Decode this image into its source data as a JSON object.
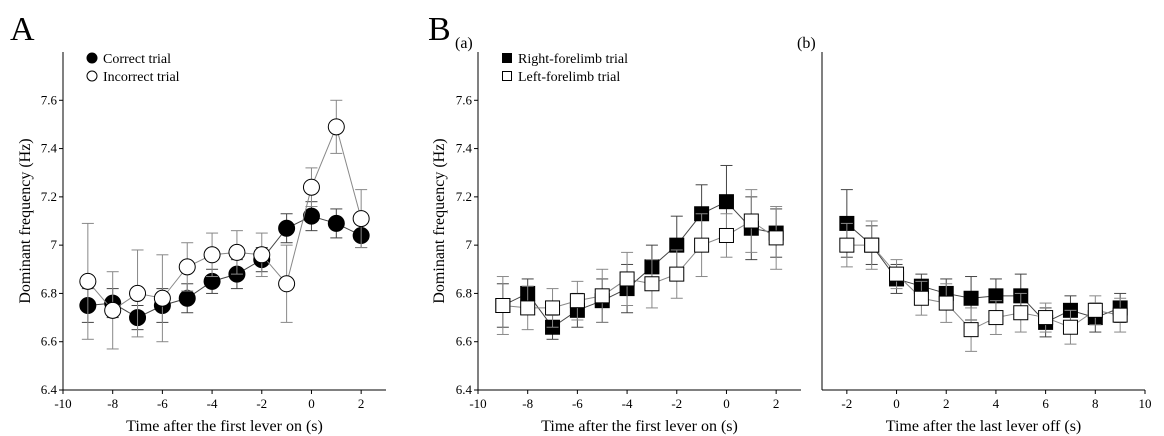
{
  "chart_data": [
    {
      "type": "line",
      "panel_label": "A",
      "xlabel": "Time after the first lever on (s)",
      "ylabel": "Dominant frequency (Hz)",
      "xlim": [
        -10,
        3
      ],
      "ylim": [
        6.4,
        7.8
      ],
      "xticks": [
        -10,
        -8,
        -6,
        -4,
        -2,
        0,
        2
      ],
      "yticks": [
        6.4,
        6.6,
        6.8,
        7,
        7.2,
        7.4,
        7.6
      ],
      "xtick_labels": [
        "-10",
        "-8",
        "-6",
        "-4",
        "-2",
        "0",
        "2"
      ],
      "ytick_labels": [
        "6.4",
        "6.6",
        "6.8",
        "7",
        "7.2",
        "7.4",
        "7.6"
      ],
      "legend_position": "top-left",
      "x": [
        -9,
        -8,
        -7,
        -6,
        -5,
        -4,
        -3,
        -2,
        -1,
        0,
        1,
        2
      ],
      "series": [
        {
          "name": "Correct trial",
          "marker": "filled-circle",
          "values": [
            6.75,
            6.76,
            6.7,
            6.75,
            6.78,
            6.85,
            6.88,
            6.94,
            7.07,
            7.12,
            7.09,
            7.04
          ],
          "errors": [
            0.07,
            0.06,
            0.05,
            0.07,
            0.06,
            0.05,
            0.06,
            0.05,
            0.06,
            0.06,
            0.06,
            0.05
          ]
        },
        {
          "name": "Incorrect trial",
          "marker": "open-circle",
          "values": [
            6.85,
            6.73,
            6.8,
            6.78,
            6.91,
            6.96,
            6.97,
            6.96,
            6.84,
            7.24,
            7.49,
            7.11
          ],
          "errors": [
            0.24,
            0.16,
            0.18,
            0.18,
            0.1,
            0.09,
            0.09,
            0.09,
            0.16,
            0.08,
            0.11,
            0.12
          ]
        }
      ]
    },
    {
      "type": "line",
      "panel_label": "B",
      "subpanel_label": "(a)",
      "xlabel": "Time after the first lever on (s)",
      "ylabel": "Dominant frequency (Hz)",
      "xlim": [
        -10,
        3
      ],
      "ylim": [
        6.4,
        7.8
      ],
      "xticks": [
        -10,
        -8,
        -6,
        -4,
        -2,
        0,
        2
      ],
      "yticks": [
        6.4,
        6.6,
        6.8,
        7,
        7.2,
        7.4,
        7.6
      ],
      "xtick_labels": [
        "-10",
        "-8",
        "-6",
        "-4",
        "-2",
        "0",
        "2"
      ],
      "ytick_labels": [
        "6.4",
        "6.6",
        "6.8",
        "7",
        "7.2",
        "7.4",
        "7.6"
      ],
      "legend_position": "top-left",
      "x": [
        -9,
        -8,
        -7,
        -6,
        -5,
        -4,
        -3,
        -2,
        -1,
        0,
        1,
        2
      ],
      "series": [
        {
          "name": "Right-forelimb trial",
          "marker": "filled-square",
          "values": [
            6.75,
            6.8,
            6.66,
            6.73,
            6.77,
            6.82,
            6.91,
            7.0,
            7.13,
            7.18,
            7.07,
            7.05
          ],
          "errors": [
            0.09,
            0.06,
            0.05,
            0.07,
            0.09,
            0.1,
            0.09,
            0.12,
            0.12,
            0.15,
            0.13,
            0.1
          ]
        },
        {
          "name": "Left-forelimb trial",
          "marker": "open-square",
          "values": [
            6.75,
            6.74,
            6.74,
            6.77,
            6.79,
            6.86,
            6.84,
            6.88,
            7.0,
            7.04,
            7.1,
            7.03
          ],
          "errors": [
            0.12,
            0.09,
            0.08,
            0.08,
            0.11,
            0.11,
            0.1,
            0.1,
            0.13,
            0.09,
            0.13,
            0.13
          ]
        }
      ]
    },
    {
      "type": "line",
      "subpanel_label": "(b)",
      "xlabel": "Time after the last lever off (s)",
      "ylabel": "",
      "xlim": [
        -3,
        10
      ],
      "ylim": [
        6.4,
        7.8
      ],
      "xticks": [
        -2,
        0,
        2,
        4,
        6,
        8,
        10
      ],
      "xtick_labels": [
        "-2",
        "0",
        "2",
        "4",
        "6",
        "8",
        "10"
      ],
      "x": [
        -2,
        -1,
        0,
        1,
        2,
        3,
        4,
        5,
        6,
        7,
        8,
        9
      ],
      "series": [
        {
          "name": "Right-forelimb trial",
          "marker": "filled-square",
          "values": [
            7.09,
            7.0,
            6.86,
            6.83,
            6.8,
            6.78,
            6.79,
            6.79,
            6.68,
            6.73,
            6.7,
            6.74
          ],
          "errors": [
            0.14,
            0.08,
            0.06,
            0.05,
            0.06,
            0.09,
            0.07,
            0.09,
            0.06,
            0.06,
            0.06,
            0.06
          ]
        },
        {
          "name": "Left-forelimb trial",
          "marker": "open-square",
          "values": [
            7.0,
            7.0,
            6.88,
            6.78,
            6.76,
            6.65,
            6.7,
            6.72,
            6.7,
            6.66,
            6.73,
            6.71
          ],
          "errors": [
            0.09,
            0.1,
            0.06,
            0.07,
            0.08,
            0.09,
            0.07,
            0.08,
            0.06,
            0.07,
            0.06,
            0.07
          ]
        }
      ]
    }
  ]
}
